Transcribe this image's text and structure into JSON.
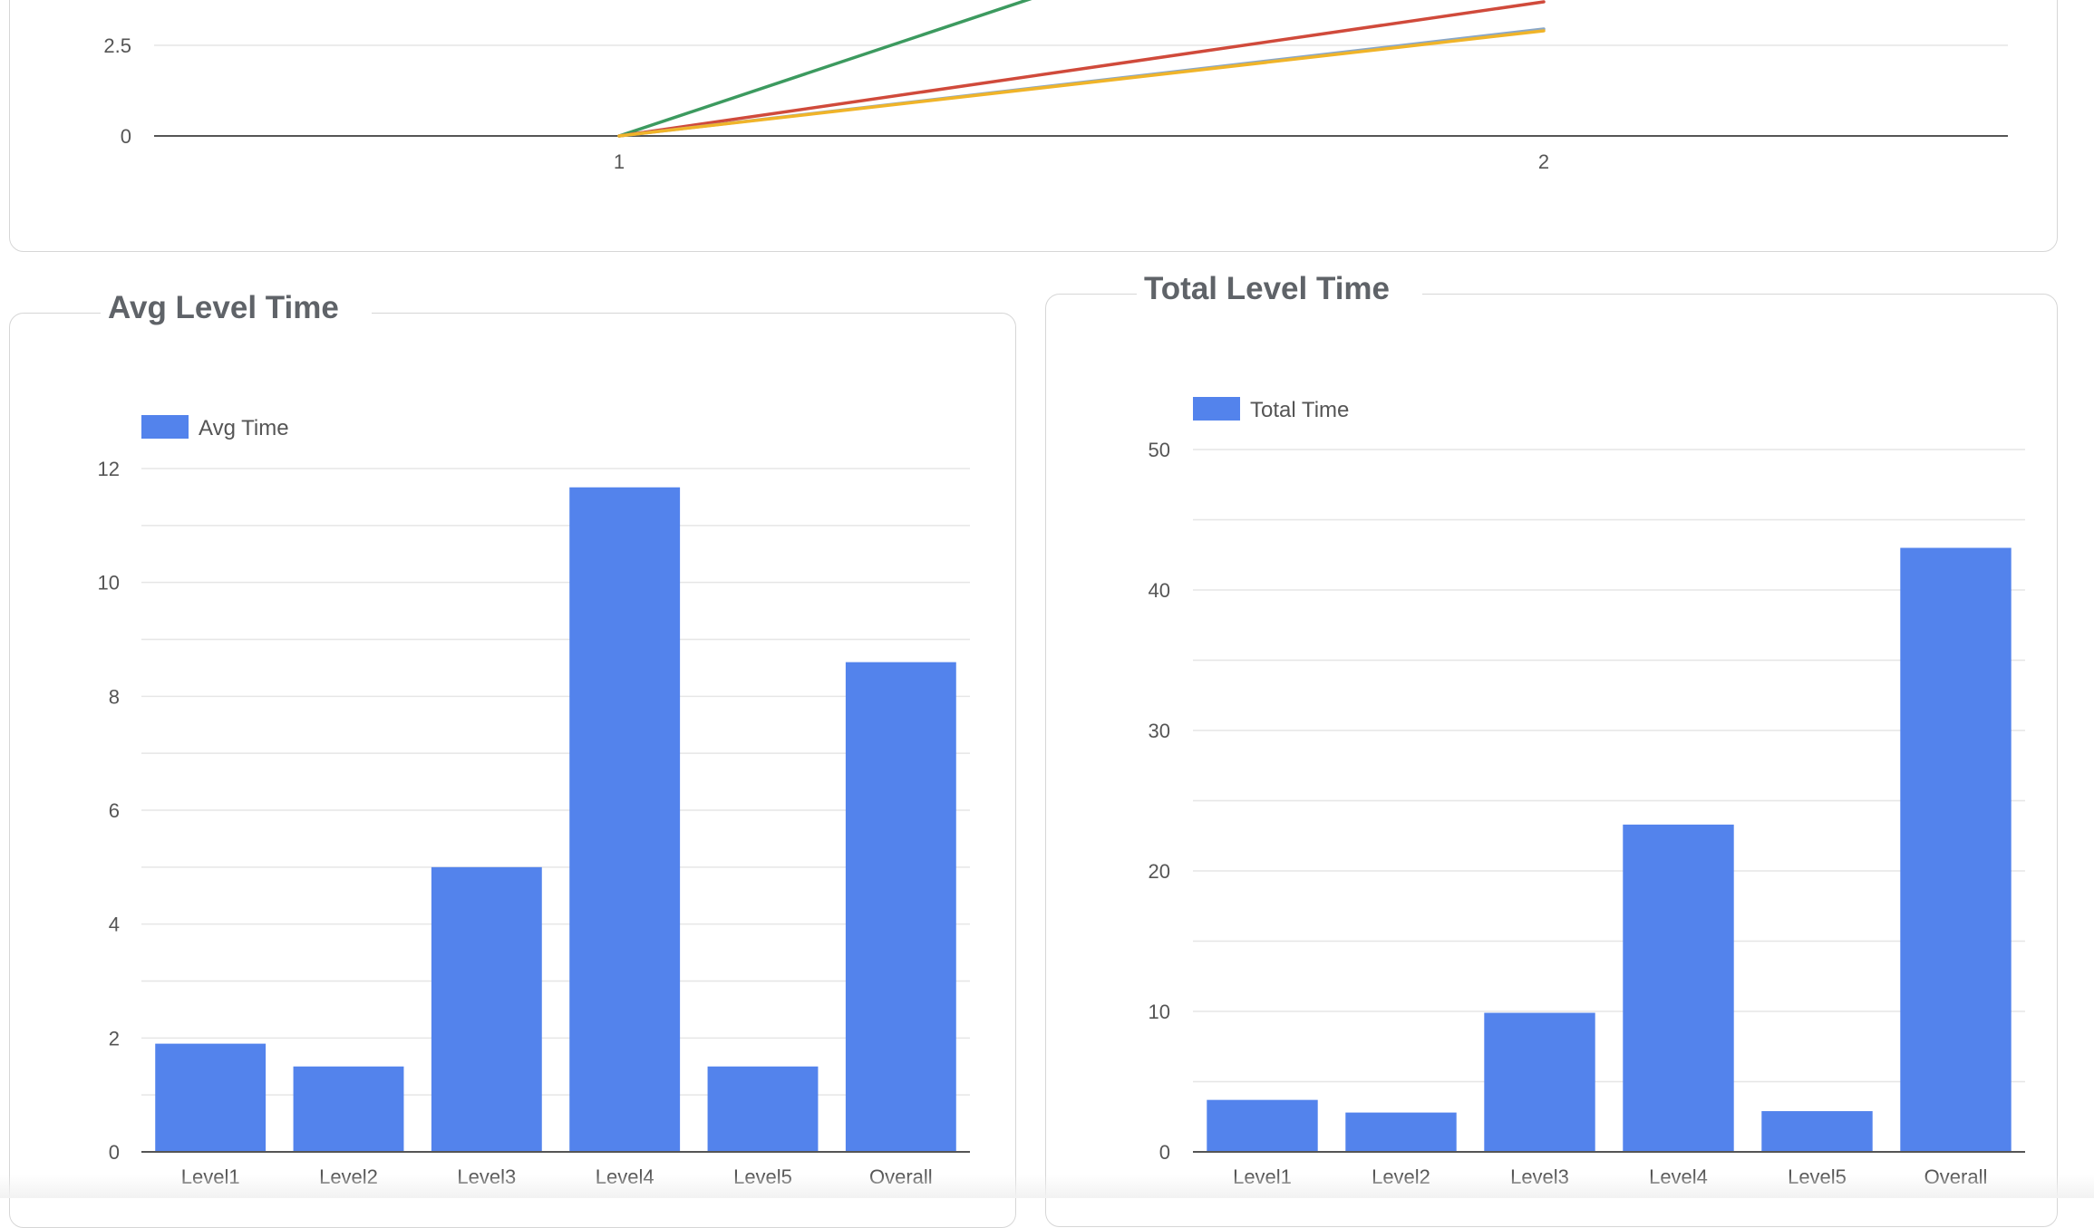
{
  "colors": {
    "bar": "#5383ec",
    "line_green": "#3c9a5f",
    "line_red": "#d04a3b",
    "line_blue": "#8aa7c7",
    "line_yellow": "#f0b429",
    "grid": "#e6e6e6",
    "axis": "#555555"
  },
  "chart_data": [
    {
      "type": "line",
      "title": "",
      "x": [
        1,
        2
      ],
      "xticks": [
        "1",
        "2"
      ],
      "yticks": [
        "0",
        "2.5"
      ],
      "series": [
        {
          "values": [
            0,
            8.5
          ],
          "color_key": "line_green"
        },
        {
          "values": [
            0,
            3.7
          ],
          "color_key": "line_red"
        },
        {
          "values": [
            0,
            2.95
          ],
          "color_key": "line_blue"
        },
        {
          "values": [
            0,
            2.9
          ],
          "color_key": "line_yellow"
        }
      ]
    },
    {
      "type": "bar",
      "title": "Avg Level Time",
      "legend": "Avg Time",
      "legend_position": "top-left",
      "categories": [
        "Level1",
        "Level2",
        "Level3",
        "Level4",
        "Level5",
        "Overall"
      ],
      "values": [
        1.9,
        1.5,
        5,
        11.67,
        1.5,
        8.6
      ],
      "yticks": [
        "0",
        "2",
        "4",
        "6",
        "8",
        "10",
        "12"
      ],
      "ylim": [
        0,
        12
      ]
    },
    {
      "type": "bar",
      "title": "Total Level Time",
      "legend": "Total Time",
      "legend_position": "top-left",
      "categories": [
        "Level1",
        "Level2",
        "Level3",
        "Level4",
        "Level5",
        "Overall"
      ],
      "values": [
        3.7,
        2.8,
        9.9,
        23.3,
        2.9,
        43
      ],
      "yticks": [
        "0",
        "10",
        "20",
        "30",
        "40",
        "50"
      ],
      "ylim": [
        0,
        50
      ]
    }
  ]
}
